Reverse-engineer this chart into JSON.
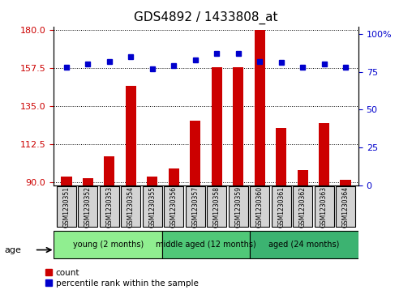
{
  "title": "GDS4892 / 1433808_at",
  "samples": [
    "GSM1230351",
    "GSM1230352",
    "GSM1230353",
    "GSM1230354",
    "GSM1230355",
    "GSM1230356",
    "GSM1230357",
    "GSM1230358",
    "GSM1230359",
    "GSM1230360",
    "GSM1230361",
    "GSM1230362",
    "GSM1230363",
    "GSM1230364"
  ],
  "counts": [
    93,
    92,
    105,
    147,
    93,
    98,
    126,
    158,
    158,
    180,
    122,
    97,
    125,
    91
  ],
  "percentiles": [
    78,
    80,
    82,
    85,
    77,
    79,
    83,
    87,
    87,
    82,
    81,
    78,
    80,
    78
  ],
  "groups": [
    {
      "label": "young (2 months)",
      "start": 0,
      "end": 5,
      "color": "#90EE90"
    },
    {
      "label": "middle aged (12 months)",
      "start": 5,
      "end": 9,
      "color": "#50C878"
    },
    {
      "label": "aged (24 months)",
      "start": 9,
      "end": 14,
      "color": "#3CB371"
    }
  ],
  "ylim_left": [
    88,
    182
  ],
  "yticks_left": [
    90,
    112.5,
    135,
    157.5,
    180
  ],
  "ylim_right": [
    0,
    105
  ],
  "yticks_right": [
    0,
    25,
    50,
    75,
    100
  ],
  "bar_color": "#CC0000",
  "dot_color": "#0000CC",
  "grid_color": "#000000",
  "left_tick_color": "#CC0000",
  "right_tick_color": "#0000CC"
}
